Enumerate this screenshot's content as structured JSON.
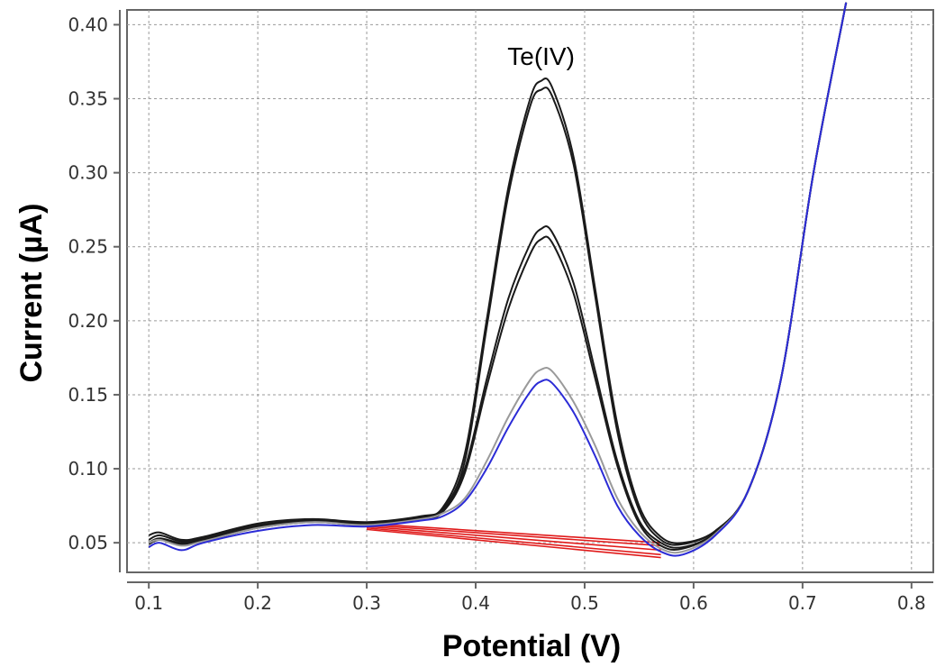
{
  "chart_data": {
    "type": "line",
    "xlabel": "Potential (V)",
    "ylabel": "Current (µA)",
    "xlim": [
      0.08,
      0.82
    ],
    "ylim": [
      0.03,
      0.41
    ],
    "xticks": [
      "0.1",
      "0.2",
      "0.3",
      "0.4",
      "0.5",
      "0.6",
      "0.7",
      "0.8"
    ],
    "yticks": [
      "0.05",
      "0.10",
      "0.15",
      "0.20",
      "0.25",
      "0.30",
      "0.35",
      "0.40"
    ],
    "grid": true,
    "annotations": [
      {
        "text": "Te(IV)",
        "x": 0.46,
        "y": 0.373
      }
    ],
    "colors": {
      "black": "#1a1a1a",
      "gray": "#9a9a9a",
      "blue": "#2b2bd6",
      "red": "#e01a1a"
    },
    "series": [
      {
        "color": "#1a1a1a",
        "points": [
          [
            0.1,
            0.055
          ],
          [
            0.11,
            0.057
          ],
          [
            0.13,
            0.052
          ],
          [
            0.15,
            0.054
          ],
          [
            0.2,
            0.063
          ],
          [
            0.25,
            0.066
          ],
          [
            0.3,
            0.064
          ],
          [
            0.35,
            0.068
          ],
          [
            0.37,
            0.074
          ],
          [
            0.39,
            0.11
          ],
          [
            0.41,
            0.2
          ],
          [
            0.43,
            0.29
          ],
          [
            0.45,
            0.35
          ],
          [
            0.46,
            0.362
          ],
          [
            0.47,
            0.358
          ],
          [
            0.49,
            0.31
          ],
          [
            0.51,
            0.22
          ],
          [
            0.53,
            0.13
          ],
          [
            0.55,
            0.075
          ],
          [
            0.57,
            0.054
          ],
          [
            0.59,
            0.05
          ],
          [
            0.62,
            0.058
          ],
          [
            0.65,
            0.085
          ],
          [
            0.68,
            0.16
          ],
          [
            0.71,
            0.3
          ],
          [
            0.74,
            0.415
          ]
        ]
      },
      {
        "color": "#1a1a1a",
        "points": [
          [
            0.1,
            0.052
          ],
          [
            0.11,
            0.055
          ],
          [
            0.13,
            0.051
          ],
          [
            0.15,
            0.053
          ],
          [
            0.2,
            0.062
          ],
          [
            0.25,
            0.065
          ],
          [
            0.3,
            0.063
          ],
          [
            0.35,
            0.067
          ],
          [
            0.37,
            0.073
          ],
          [
            0.39,
            0.105
          ],
          [
            0.41,
            0.195
          ],
          [
            0.43,
            0.285
          ],
          [
            0.45,
            0.345
          ],
          [
            0.46,
            0.356
          ],
          [
            0.47,
            0.352
          ],
          [
            0.49,
            0.305
          ],
          [
            0.51,
            0.215
          ],
          [
            0.53,
            0.125
          ],
          [
            0.55,
            0.072
          ],
          [
            0.57,
            0.052
          ],
          [
            0.59,
            0.049
          ],
          [
            0.62,
            0.058
          ],
          [
            0.65,
            0.085
          ],
          [
            0.68,
            0.16
          ],
          [
            0.71,
            0.3
          ],
          [
            0.74,
            0.415
          ]
        ]
      },
      {
        "color": "#1a1a1a",
        "points": [
          [
            0.1,
            0.05
          ],
          [
            0.11,
            0.053
          ],
          [
            0.13,
            0.05
          ],
          [
            0.15,
            0.052
          ],
          [
            0.2,
            0.061
          ],
          [
            0.25,
            0.065
          ],
          [
            0.3,
            0.063
          ],
          [
            0.35,
            0.067
          ],
          [
            0.37,
            0.072
          ],
          [
            0.39,
            0.1
          ],
          [
            0.41,
            0.16
          ],
          [
            0.43,
            0.215
          ],
          [
            0.45,
            0.252
          ],
          [
            0.46,
            0.262
          ],
          [
            0.47,
            0.26
          ],
          [
            0.49,
            0.225
          ],
          [
            0.51,
            0.165
          ],
          [
            0.53,
            0.105
          ],
          [
            0.55,
            0.065
          ],
          [
            0.57,
            0.05
          ],
          [
            0.59,
            0.047
          ],
          [
            0.62,
            0.057
          ],
          [
            0.65,
            0.085
          ],
          [
            0.68,
            0.16
          ],
          [
            0.71,
            0.3
          ],
          [
            0.74,
            0.415
          ]
        ]
      },
      {
        "color": "#1a1a1a",
        "points": [
          [
            0.1,
            0.049
          ],
          [
            0.11,
            0.052
          ],
          [
            0.13,
            0.049
          ],
          [
            0.15,
            0.051
          ],
          [
            0.2,
            0.06
          ],
          [
            0.25,
            0.064
          ],
          [
            0.3,
            0.062
          ],
          [
            0.35,
            0.066
          ],
          [
            0.37,
            0.071
          ],
          [
            0.39,
            0.097
          ],
          [
            0.41,
            0.155
          ],
          [
            0.43,
            0.208
          ],
          [
            0.45,
            0.245
          ],
          [
            0.46,
            0.255
          ],
          [
            0.47,
            0.253
          ],
          [
            0.49,
            0.218
          ],
          [
            0.51,
            0.16
          ],
          [
            0.53,
            0.102
          ],
          [
            0.55,
            0.063
          ],
          [
            0.57,
            0.048
          ],
          [
            0.59,
            0.046
          ],
          [
            0.62,
            0.057
          ],
          [
            0.65,
            0.085
          ],
          [
            0.68,
            0.16
          ],
          [
            0.71,
            0.3
          ],
          [
            0.74,
            0.415
          ]
        ]
      },
      {
        "color": "#9a9a9a",
        "points": [
          [
            0.1,
            0.05
          ],
          [
            0.11,
            0.052
          ],
          [
            0.13,
            0.048
          ],
          [
            0.15,
            0.051
          ],
          [
            0.2,
            0.06
          ],
          [
            0.25,
            0.064
          ],
          [
            0.3,
            0.062
          ],
          [
            0.35,
            0.066
          ],
          [
            0.37,
            0.07
          ],
          [
            0.39,
            0.08
          ],
          [
            0.41,
            0.105
          ],
          [
            0.43,
            0.135
          ],
          [
            0.45,
            0.16
          ],
          [
            0.46,
            0.167
          ],
          [
            0.47,
            0.166
          ],
          [
            0.49,
            0.145
          ],
          [
            0.51,
            0.115
          ],
          [
            0.53,
            0.08
          ],
          [
            0.55,
            0.058
          ],
          [
            0.57,
            0.046
          ],
          [
            0.59,
            0.044
          ],
          [
            0.62,
            0.056
          ],
          [
            0.65,
            0.085
          ],
          [
            0.68,
            0.16
          ],
          [
            0.71,
            0.3
          ],
          [
            0.74,
            0.415
          ]
        ]
      },
      {
        "color": "#2b2bd6",
        "points": [
          [
            0.1,
            0.047
          ],
          [
            0.11,
            0.05
          ],
          [
            0.13,
            0.045
          ],
          [
            0.15,
            0.05
          ],
          [
            0.2,
            0.058
          ],
          [
            0.25,
            0.062
          ],
          [
            0.3,
            0.061
          ],
          [
            0.35,
            0.065
          ],
          [
            0.37,
            0.068
          ],
          [
            0.39,
            0.078
          ],
          [
            0.41,
            0.1
          ],
          [
            0.43,
            0.128
          ],
          [
            0.45,
            0.152
          ],
          [
            0.46,
            0.159
          ],
          [
            0.47,
            0.158
          ],
          [
            0.49,
            0.138
          ],
          [
            0.51,
            0.108
          ],
          [
            0.53,
            0.075
          ],
          [
            0.55,
            0.055
          ],
          [
            0.57,
            0.044
          ],
          [
            0.59,
            0.042
          ],
          [
            0.62,
            0.055
          ],
          [
            0.65,
            0.085
          ],
          [
            0.68,
            0.16
          ],
          [
            0.71,
            0.3
          ],
          [
            0.74,
            0.415
          ]
        ]
      }
    ],
    "baselines": [
      {
        "color": "#e01a1a",
        "from": [
          0.3,
          0.063
        ],
        "to": [
          0.57,
          0.05
        ]
      },
      {
        "color": "#e01a1a",
        "from": [
          0.3,
          0.062
        ],
        "to": [
          0.57,
          0.048
        ]
      },
      {
        "color": "#e01a1a",
        "from": [
          0.3,
          0.061
        ],
        "to": [
          0.57,
          0.045
        ]
      },
      {
        "color": "#e01a1a",
        "from": [
          0.3,
          0.06
        ],
        "to": [
          0.57,
          0.042
        ]
      },
      {
        "color": "#e01a1a",
        "from": [
          0.3,
          0.059
        ],
        "to": [
          0.57,
          0.04
        ]
      }
    ]
  }
}
